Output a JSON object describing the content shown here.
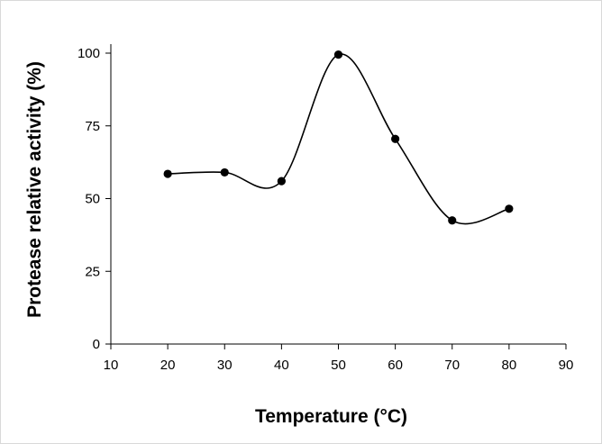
{
  "chart_data": {
    "type": "scatter",
    "title": "",
    "xlabel": "Temperature (°C)",
    "ylabel": "Protease relative activity (%)",
    "xlim": [
      10,
      90
    ],
    "ylim": [
      0,
      100
    ],
    "xticks": [
      10,
      20,
      30,
      40,
      50,
      60,
      70,
      80,
      90
    ],
    "yticks": [
      0,
      25,
      50,
      75,
      100
    ],
    "grid": false,
    "legend": "none",
    "smoothed_line": true,
    "x": [
      20,
      30,
      40,
      50,
      60,
      70,
      80
    ],
    "y": [
      58.5,
      59,
      56,
      99.5,
      70.5,
      42.5,
      46.5
    ],
    "colors": {
      "marker": "#000000",
      "line": "#000000"
    }
  }
}
